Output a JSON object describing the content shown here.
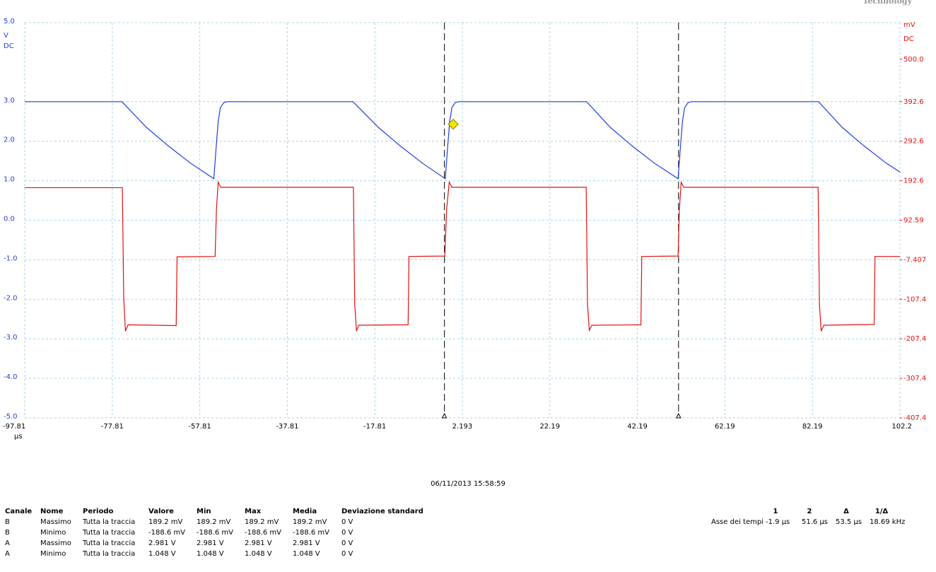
{
  "brand": "Technology",
  "chart_data": {
    "type": "line",
    "y_unit": "V",
    "y_coupling": "DC",
    "y2_unit": "mV",
    "y2_coupling": "DC",
    "x_unit": "µs",
    "xlim": [
      -97.81,
      102.2
    ],
    "xticks": [
      -97.81,
      -77.81,
      -57.81,
      -37.81,
      -17.81,
      2.193,
      22.19,
      42.19,
      62.19,
      82.19,
      102.2
    ],
    "ylim": [
      -5,
      5
    ],
    "yticks": [
      {
        "value": 5,
        "label": "5.0"
      },
      {
        "value": 3,
        "label": "3.0"
      },
      {
        "value": 2,
        "label": "2.0"
      },
      {
        "value": 1,
        "label": "1.0"
      },
      {
        "value": 0,
        "label": "0.0"
      },
      {
        "value": -1,
        "label": "-1.0"
      },
      {
        "value": -2,
        "label": "-2.0"
      },
      {
        "value": -3,
        "label": "-3.0"
      },
      {
        "value": -4,
        "label": "-4.0"
      },
      {
        "value": -5,
        "label": "-5.0"
      }
    ],
    "y2lim": [
      -407.4,
      592.6
    ],
    "y2ticks": [
      {
        "value": 500,
        "label": "500.0"
      },
      392.6,
      292.6,
      192.6,
      92.59,
      -7.407,
      -107.4,
      -207.4,
      -307.4,
      -407.4
    ],
    "grid": true,
    "series": [
      {
        "name": "A",
        "color": "#1f3fe0",
        "x": [
          -97.81,
          -75.6,
          -70,
          -65,
          -60,
          -54.6,
          -54.1,
          -53.6,
          -53.1,
          -52.3,
          -51.5,
          -22.8,
          -17,
          -12,
          -7,
          -1.7,
          -1.2,
          -0.7,
          -0.2,
          0.6,
          1.5,
          30.6,
          36,
          41,
          46,
          51.5,
          52,
          52.5,
          53,
          53.8,
          54.6,
          83.6,
          89,
          94,
          99,
          102.2
        ],
        "values": [
          3.0,
          3.0,
          2.35,
          1.88,
          1.45,
          1.05,
          1.8,
          2.5,
          2.85,
          2.98,
          3.0,
          3.0,
          2.35,
          1.88,
          1.45,
          1.05,
          1.8,
          2.5,
          2.85,
          2.98,
          3.0,
          3.0,
          2.35,
          1.88,
          1.45,
          1.05,
          1.8,
          2.5,
          2.85,
          2.98,
          3.0,
          3.0,
          2.35,
          1.88,
          1.45,
          1.22
        ]
      },
      {
        "name": "B",
        "color": "#e01010",
        "axis": "y2",
        "x": [
          -97.81,
          -75.5,
          -75.2,
          -74.8,
          -74.2,
          -63.2,
          -63.0,
          -54.3,
          -54.0,
          -53.6,
          -53.0,
          -22.7,
          -22.4,
          -22.0,
          -21.5,
          -10.2,
          -10.0,
          -1.8,
          -1.4,
          -0.8,
          -0.2,
          30.5,
          30.8,
          31.2,
          31.8,
          43.0,
          43.2,
          51.5,
          51.8,
          52.2,
          52.8,
          83.5,
          83.8,
          84.2,
          84.8,
          96.3,
          96.5,
          102.2
        ],
        "values": [
          175,
          175,
          -100,
          -188,
          -172,
          -174,
          0,
          1,
          120,
          189,
          176,
          176,
          -120,
          -188,
          -173,
          -172,
          1,
          2,
          120,
          189,
          176,
          176,
          -120,
          -186,
          -173,
          -172,
          1,
          2,
          120,
          189,
          176,
          176,
          -120,
          -188,
          -173,
          -171,
          1,
          1
        ]
      }
    ],
    "cursors": [
      -1.9,
      51.6
    ],
    "trigger": {
      "x": 0.1,
      "y": 2.43
    }
  },
  "timestamp": "06/11/2013 15:58:59",
  "measurements": {
    "headers": [
      "Canale",
      "Nome",
      "Periodo",
      "Valore",
      "Min",
      "Max",
      "Media",
      "Deviazione standard"
    ],
    "rows": [
      [
        "B",
        "Massimo",
        "Tutta la traccia",
        "189.2 mV",
        "189.2 mV",
        "189.2 mV",
        "189.2 mV",
        "0 V"
      ],
      [
        "B",
        "Minimo",
        "Tutta la traccia",
        "-188.6 mV",
        "-188.6 mV",
        "-188.6 mV",
        "-188.6 mV",
        "0 V"
      ],
      [
        "A",
        "Massimo",
        "Tutta la traccia",
        "2.981 V",
        "2.981 V",
        "2.981 V",
        "2.981 V",
        "0 V"
      ],
      [
        "A",
        "Minimo",
        "Tutta la traccia",
        "1.048 V",
        "1.048 V",
        "1.048 V",
        "1.048 V",
        "0 V"
      ]
    ]
  },
  "cursor_table": {
    "headers": [
      "1",
      "2",
      "Δ",
      "1/Δ"
    ],
    "rows": [
      [
        "Asse dei tempi",
        "-1.9 µs",
        "51.6 µs",
        "53.5 µs",
        "18.69 kHz"
      ]
    ]
  }
}
